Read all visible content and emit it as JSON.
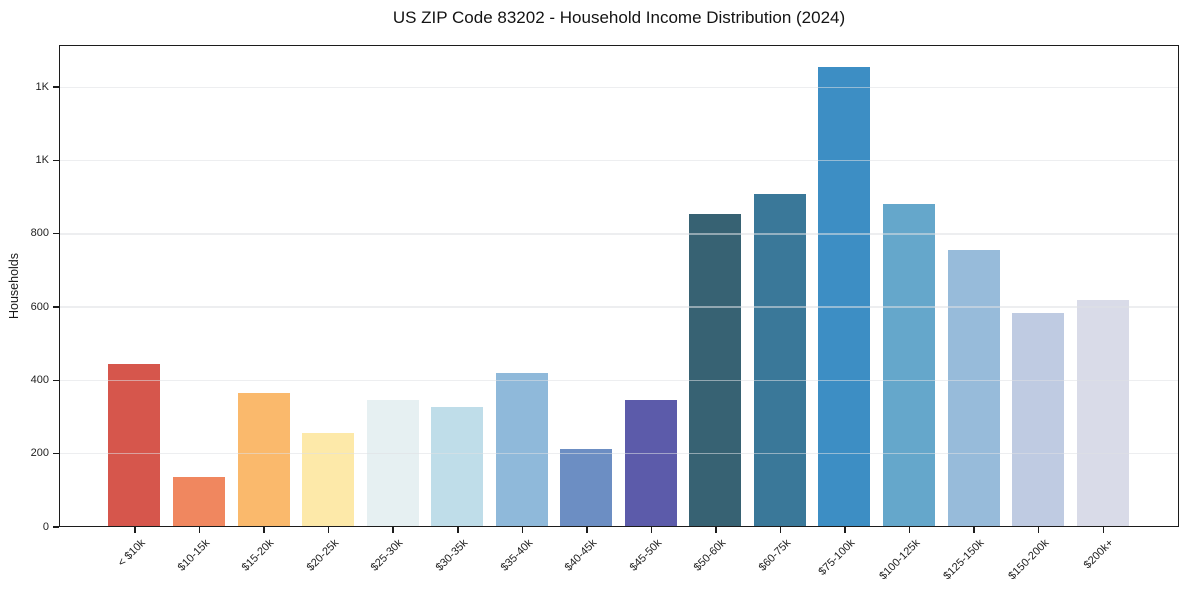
{
  "chart_data": {
    "type": "bar",
    "title": "US ZIP Code 83202 - Household Income Distribution (2024)",
    "xlabel": "",
    "ylabel": "Households",
    "categories": [
      "< $10k",
      "$10-15k",
      "$15-20k",
      "$20-25k",
      "$25-30k",
      "$30-35k",
      "$35-40k",
      "$40-45k",
      "$45-50k",
      "$50-60k",
      "$60-75k",
      "$75-100k",
      "$100-125k",
      "$125-150k",
      "$150-200k",
      "$200k+"
    ],
    "values": [
      443,
      135,
      364,
      254,
      344,
      325,
      417,
      210,
      345,
      852,
      906,
      1253,
      879,
      753,
      581,
      617
    ],
    "bar_colors": [
      "#d6564c",
      "#f0875f",
      "#fab96c",
      "#fde9a9",
      "#e6f0f2",
      "#bfdde9",
      "#8fb9da",
      "#6c8ec3",
      "#5c5baa",
      "#376273",
      "#3a7899",
      "#3d8ec4",
      "#65a7cb",
      "#97bbda",
      "#bfcbe2",
      "#d9dbe8"
    ],
    "ylim": [
      0,
      1315
    ],
    "yticks": [
      {
        "value": 0,
        "label": "0"
      },
      {
        "value": 200,
        "label": "200"
      },
      {
        "value": 400,
        "label": "400"
      },
      {
        "value": 600,
        "label": "600"
      },
      {
        "value": 800,
        "label": "800"
      },
      {
        "value": 1000,
        "label": "1K"
      },
      {
        "value": 1200,
        "label": "1K"
      }
    ],
    "grid": "horizontal-on-top",
    "legend": "none"
  }
}
